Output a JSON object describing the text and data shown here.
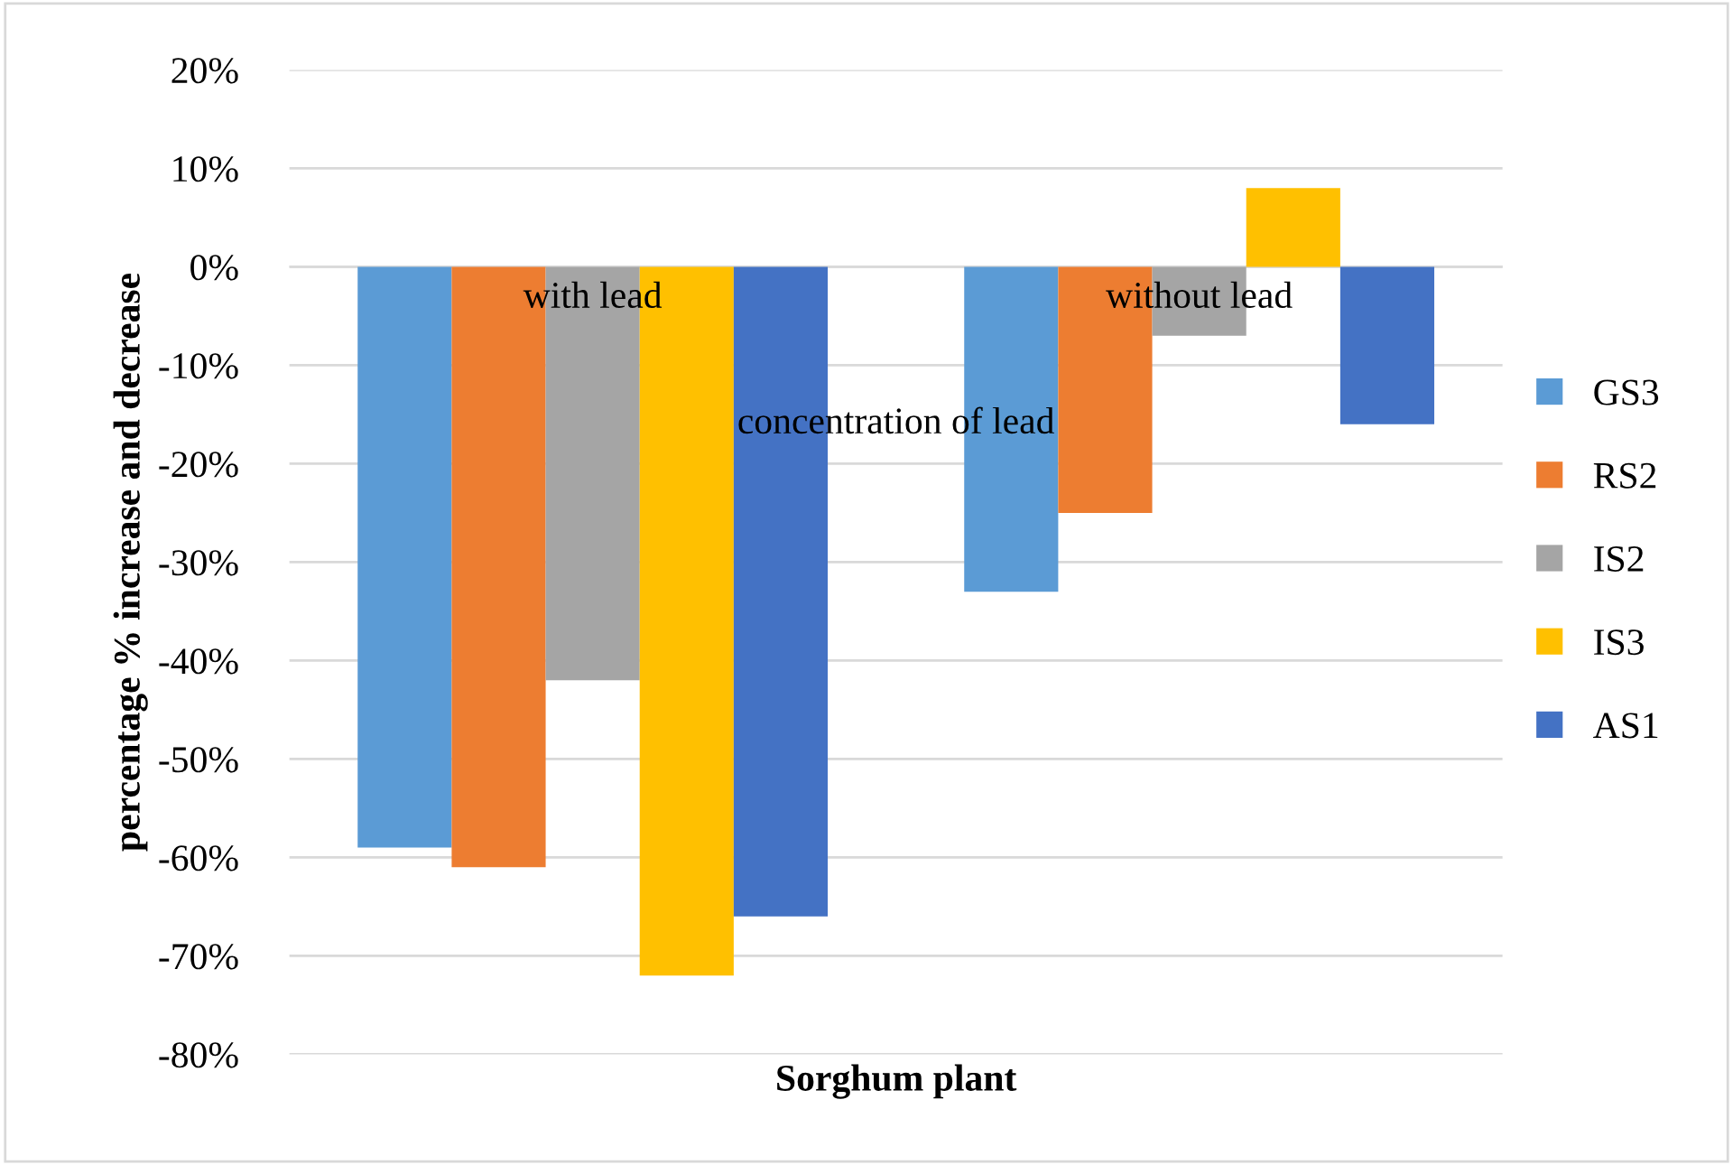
{
  "chart_data": {
    "type": "bar",
    "xlabel": "Sorghum plant",
    "ylabel": "percentage % increase and decrease",
    "categories": [
      "with lead",
      "without lead"
    ],
    "series": [
      {
        "name": "GS3",
        "color": "#5b9bd5",
        "values": [
          -59,
          -33
        ]
      },
      {
        "name": "RS2",
        "color": "#ed7d31",
        "values": [
          -61,
          -25
        ]
      },
      {
        "name": "IS2",
        "color": "#a5a5a5",
        "values": [
          -42,
          -7
        ]
      },
      {
        "name": "IS3",
        "color": "#ffc000",
        "values": [
          -72,
          8
        ]
      },
      {
        "name": "AS1",
        "color": "#4472c4",
        "values": [
          -66,
          -16
        ]
      }
    ],
    "ylim": [
      -80,
      20
    ],
    "yticks": [
      {
        "value": -80,
        "label": "-80%"
      },
      {
        "value": -70,
        "label": "-70%"
      },
      {
        "value": -60,
        "label": "-60%"
      },
      {
        "value": -50,
        "label": "-50%"
      },
      {
        "value": -40,
        "label": "-40%"
      },
      {
        "value": -30,
        "label": "-30%"
      },
      {
        "value": -20,
        "label": "-20%"
      },
      {
        "value": -10,
        "label": "-10%"
      },
      {
        "value": 0,
        "label": "0%"
      },
      {
        "value": 10,
        "label": "10%"
      },
      {
        "value": 20,
        "label": "20%"
      }
    ],
    "grid": "y",
    "legend": "right",
    "annotations": [
      "concentration of lead"
    ]
  }
}
